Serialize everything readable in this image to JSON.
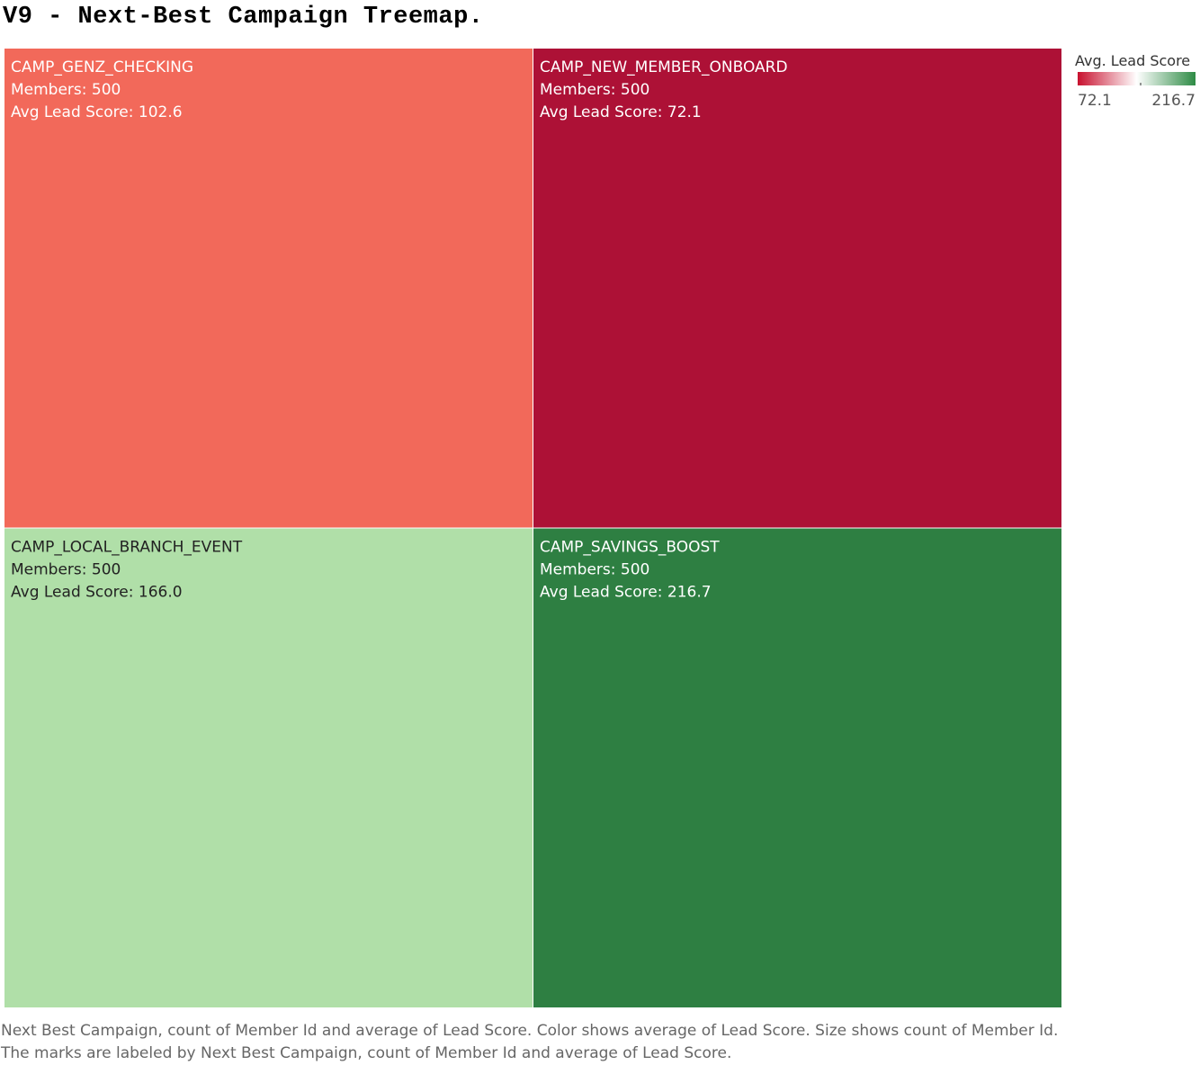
{
  "page": {
    "title": "V9 - Next-Best Campaign Treemap.",
    "caption_line1": "Next Best Campaign, count of Member Id and average of Lead Score.  Color shows average of Lead Score.  Size shows count of Member Id.",
    "caption_line2": "The marks are labeled by Next Best Campaign, count of Member Id and average of Lead Score."
  },
  "chart_data": {
    "type": "treemap",
    "size_measure": "count of Member Id",
    "color_measure": "average of Lead Score",
    "label_members_prefix": "Members:  ",
    "label_score_prefix": "Avg Lead Score: ",
    "tiles": [
      {
        "name": "CAMP_GENZ_CHECKING",
        "members": 500,
        "avg_lead_score": 102.6,
        "color": "#f2695a",
        "text_color": "#ffffff"
      },
      {
        "name": "CAMP_NEW_MEMBER_ONBOARD",
        "members": 500,
        "avg_lead_score": 72.1,
        "color": "#ad1136",
        "text_color": "#ffffff"
      },
      {
        "name": "CAMP_LOCAL_BRANCH_EVENT",
        "members": 500,
        "avg_lead_score": 166.0,
        "color": "#b0dfa8",
        "text_color": "#222222"
      },
      {
        "name": "CAMP_SAVINGS_BOOST",
        "members": 500,
        "avg_lead_score": 216.7,
        "color": "#2e7f42",
        "text_color": "#ffffff"
      }
    ],
    "legend": {
      "title": "Avg. Lead Score",
      "min": 72.1,
      "max": 216.7,
      "min_label": "72.1",
      "max_label": "216.7",
      "color_low": "#c8102e",
      "color_mid": "#ffffff",
      "color_high": "#2e8b45",
      "placement": "top-right"
    }
  }
}
